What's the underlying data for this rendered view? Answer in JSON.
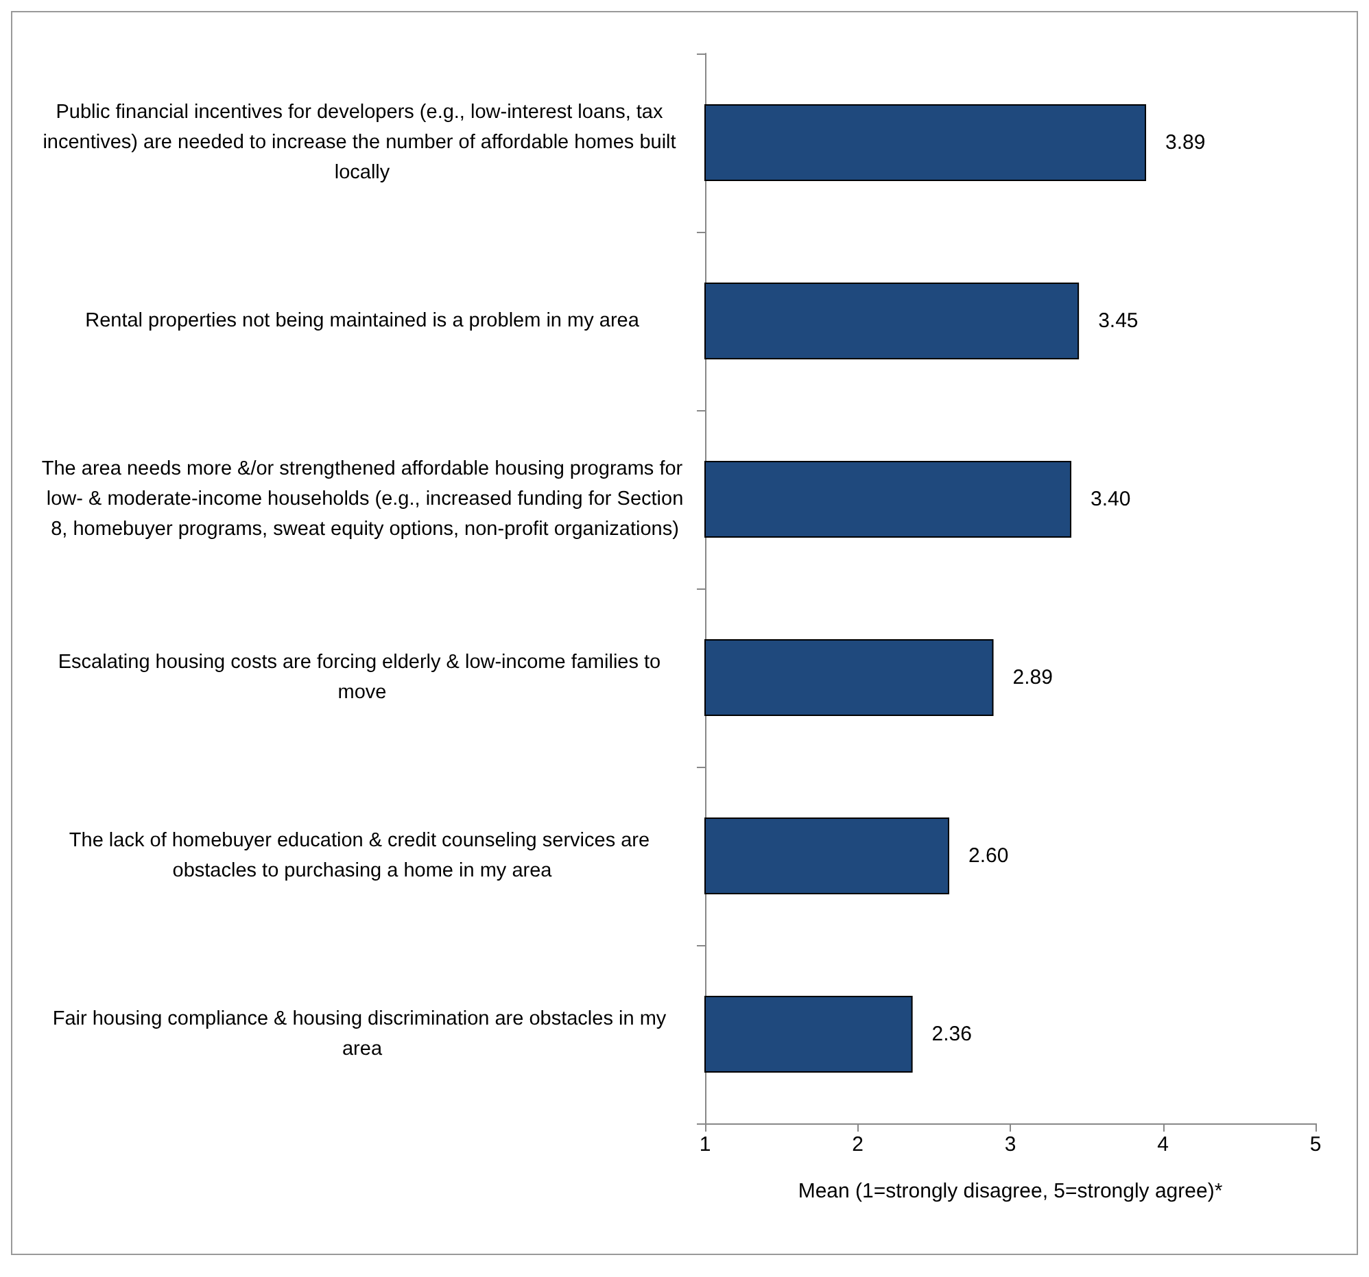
{
  "chart_data": {
    "type": "bar",
    "orientation": "horizontal",
    "categories": [
      "Public financial incentives for developers (e.g., low-interest loans, tax incentives) are needed to increase the number of affordable homes built locally",
      "Rental properties not being maintained is a problem in my area",
      "The area needs more &/or strengthened affordable housing programs for low- & moderate-income households (e.g., increased funding for Section 8, homebuyer programs, sweat equity options, non-profit organizations)",
      "Escalating housing costs are forcing elderly & low-income families to move",
      "The lack of homebuyer education & credit counseling services are obstacles to purchasing a home in my area",
      "Fair housing compliance & housing discrimination are obstacles in my area"
    ],
    "values": [
      3.89,
      3.45,
      3.4,
      2.89,
      2.6,
      2.36
    ],
    "color": "#1f497d",
    "xlabel": "Mean (1=strongly disagree, 5=strongly agree)*",
    "xlim": [
      1,
      5
    ],
    "xticks": [
      1,
      2,
      3,
      4,
      5
    ],
    "value_labels": [
      "3.89",
      "3.45",
      "3.40",
      "2.89",
      "2.60",
      "2.36"
    ],
    "grid": false
  }
}
